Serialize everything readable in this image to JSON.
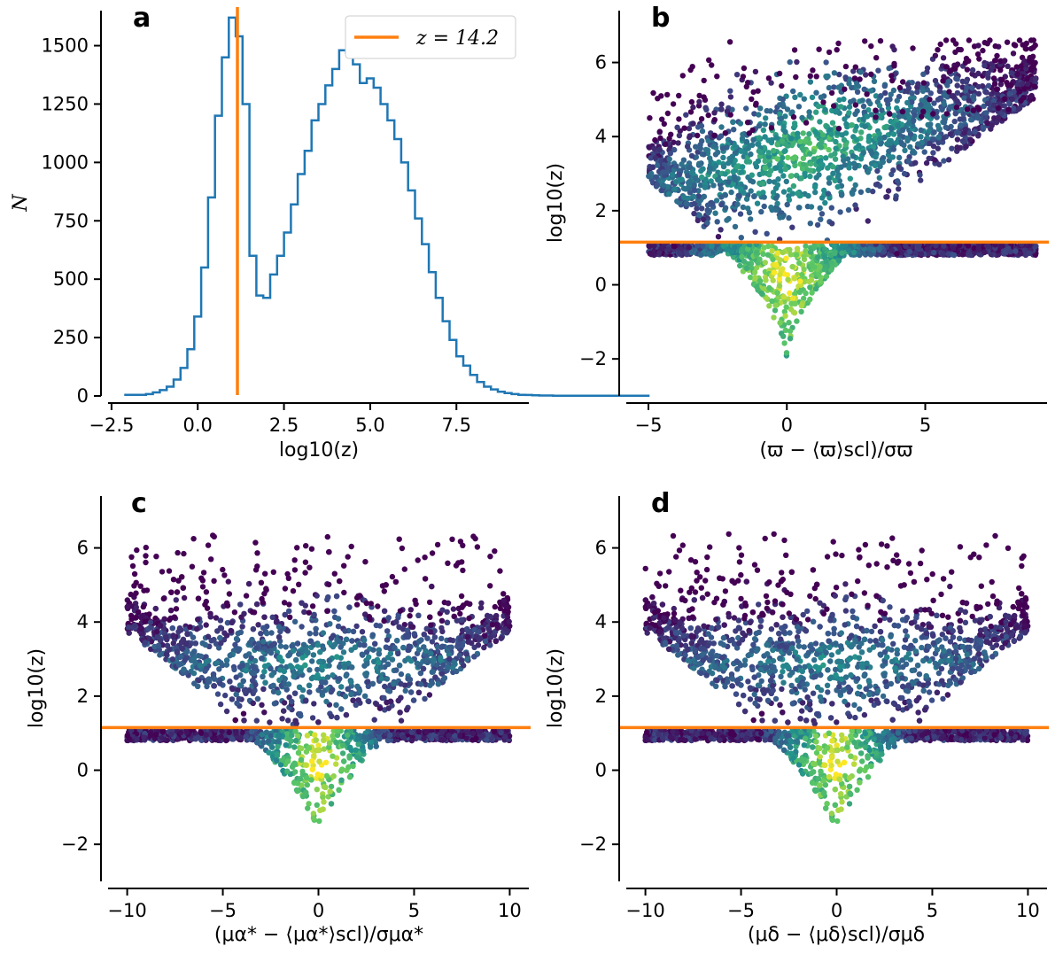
{
  "colors": {
    "histogram": "#1f77b4",
    "threshold": "#ff7f0e",
    "viridis": [
      "#440154",
      "#3b528b",
      "#21908d",
      "#5dc963",
      "#fde725"
    ]
  },
  "chart_data": [
    {
      "panel": "a",
      "type": "histogram",
      "xlabel": "log10(z)",
      "ylabel": "N",
      "xlim": [
        -2.6,
        9.6
      ],
      "ylim": [
        0,
        1650
      ],
      "xticks": [
        "−2.5",
        "0.0",
        "2.5",
        "5.0",
        "7.5"
      ],
      "xtick_values": [
        -2.5,
        0.0,
        2.5,
        5.0,
        7.5
      ],
      "yticks": [
        "0",
        "250",
        "500",
        "750",
        "1000",
        "1250",
        "1500"
      ],
      "ytick_values": [
        0,
        250,
        500,
        750,
        1000,
        1250,
        1500
      ],
      "threshold_x": 1.15,
      "legend": "z = 14.2",
      "bin_edges_start": -2.1,
      "bin_width": 0.2,
      "counts": [
        5,
        5,
        5,
        8,
        15,
        25,
        40,
        70,
        120,
        200,
        340,
        550,
        850,
        1200,
        1450,
        1620,
        1540,
        1250,
        600,
        430,
        420,
        520,
        600,
        700,
        820,
        950,
        1050,
        1180,
        1250,
        1330,
        1400,
        1480,
        1470,
        1420,
        1340,
        1360,
        1320,
        1250,
        1180,
        1100,
        1000,
        880,
        760,
        650,
        530,
        420,
        320,
        240,
        170,
        130,
        90,
        60,
        40,
        28,
        18,
        12,
        8,
        5,
        4,
        3,
        2,
        2,
        1,
        1,
        1,
        1,
        1,
        1,
        1,
        1,
        1,
        1,
        1,
        1,
        1,
        1
      ]
    },
    {
      "panel": "b",
      "type": "hexbin",
      "xlabel": "(ϖ − ⟨ϖ⟩scl)/σϖ",
      "ylabel": "log10(z)",
      "xlim": [
        -5.8,
        9.4
      ],
      "ylim": [
        -3,
        7.4
      ],
      "xticks": [
        "−5",
        "0",
        "5"
      ],
      "xtick_values": [
        -5,
        0,
        5
      ],
      "yticks": [
        "−2",
        "0",
        "2",
        "4",
        "6"
      ],
      "ytick_values": [
        -2,
        0,
        2,
        4,
        6
      ],
      "threshold_y": 1.15,
      "x_range": [
        -5,
        9
      ],
      "v_min_y": -2.2,
      "v_slope": 0.55,
      "upper_center_y": 3.5,
      "upper_trend": 0.18
    },
    {
      "panel": "c",
      "type": "hexbin",
      "xlabel": "(μα* − ⟨μα*⟩scl)/σμα*",
      "ylabel": "log10(z)",
      "xlim": [
        -11,
        11
      ],
      "ylim": [
        -3,
        7.4
      ],
      "xticks": [
        "−10",
        "−5",
        "0",
        "5",
        "10"
      ],
      "xtick_values": [
        -10,
        -5,
        0,
        5,
        10
      ],
      "yticks": [
        "−2",
        "0",
        "2",
        "4",
        "6"
      ],
      "ytick_values": [
        -2,
        0,
        2,
        4,
        6
      ],
      "threshold_y": 1.15,
      "x_range": [
        -10,
        10
      ],
      "v_min_y": -2.2,
      "v_slope": 0.42,
      "upper_center_y": 2.9,
      "upper_trend": 0.0
    },
    {
      "panel": "d",
      "type": "hexbin",
      "xlabel": "(μδ − ⟨μδ⟩scl)/σμδ",
      "ylabel": "log10(z)",
      "xlim": [
        -11,
        11
      ],
      "ylim": [
        -3,
        7.4
      ],
      "xticks": [
        "−10",
        "−5",
        "0",
        "5",
        "10"
      ],
      "xtick_values": [
        -10,
        -5,
        0,
        5,
        10
      ],
      "yticks": [
        "−2",
        "0",
        "2",
        "4",
        "6"
      ],
      "ytick_values": [
        -2,
        0,
        2,
        4,
        6
      ],
      "threshold_y": 1.15,
      "x_range": [
        -10,
        10
      ],
      "v_min_y": -2.2,
      "v_slope": 0.42,
      "upper_center_y": 2.9,
      "upper_trend": 0.0
    }
  ]
}
